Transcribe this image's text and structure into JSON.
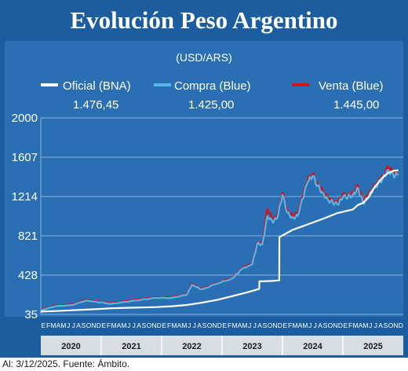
{
  "header": {
    "title": "Evolución Peso Argentino",
    "unit": "(USD/ARS)"
  },
  "source_note": "Al: 3/12/2025. Fuente: Ámbito.",
  "colors": {
    "background": "#1b5d9e",
    "panel": "#2a6fb3",
    "oficial": "#ffffff",
    "compra": "#55b6e8",
    "venta": "#d2141e",
    "grid": "#8ab4dc",
    "year_band": "#d8dde3"
  },
  "chart_data": {
    "type": "line",
    "title": "Evolución Peso Argentino",
    "subtitle": "(USD/ARS)",
    "ylim": [
      35,
      2000
    ],
    "yticks": [
      35,
      428,
      821,
      1214,
      1607,
      2000
    ],
    "ytick_labels": [
      "35",
      "428",
      "821",
      "1214",
      "1607",
      "2000"
    ],
    "grid": true,
    "legend_position": "top",
    "x_start": "2020-01",
    "x_end": "2025-12",
    "years": [
      "2020",
      "2021",
      "2022",
      "2023",
      "2024",
      "2025"
    ],
    "month_letters": [
      "E",
      "F",
      "M",
      "A",
      "M",
      "J",
      "J",
      "A",
      "S",
      "O",
      "N",
      "D"
    ],
    "series": [
      {
        "name": "Oficial (BNA)",
        "latest_value": "1.476,45",
        "points": [
          [
            "2020-01",
            63
          ],
          [
            "2020-04",
            69
          ],
          [
            "2020-07",
            76
          ],
          [
            "2020-10",
            83
          ],
          [
            "2020-12",
            88
          ],
          [
            "2021-03",
            96
          ],
          [
            "2021-06",
            101
          ],
          [
            "2021-09",
            104
          ],
          [
            "2021-12",
            108
          ],
          [
            "2022-03",
            117
          ],
          [
            "2022-06",
            129
          ],
          [
            "2022-09",
            152
          ],
          [
            "2022-12",
            180
          ],
          [
            "2023-03",
            217
          ],
          [
            "2023-06",
            256
          ],
          [
            "2023-08-13",
            290
          ],
          [
            "2023-08-14",
            365
          ],
          [
            "2023-11",
            370
          ],
          [
            "2023-12-12",
            375
          ],
          [
            "2023-12-13",
            808
          ],
          [
            "2024-03",
            880
          ],
          [
            "2024-06",
            935
          ],
          [
            "2024-09",
            990
          ],
          [
            "2024-12",
            1050
          ],
          [
            "2025-03",
            1085
          ],
          [
            "2025-04",
            1130
          ],
          [
            "2025-05",
            1150
          ],
          [
            "2025-06",
            1200
          ],
          [
            "2025-07",
            1285
          ],
          [
            "2025-08",
            1350
          ],
          [
            "2025-09",
            1410
          ],
          [
            "2025-10",
            1450
          ],
          [
            "2025-11",
            1470
          ],
          [
            "2025-12",
            1476
          ]
        ]
      },
      {
        "name": "Compra (Blue)",
        "latest_value": "1.425,00",
        "points": [
          [
            "2020-01",
            77
          ],
          [
            "2020-04",
            117
          ],
          [
            "2020-07",
            127
          ],
          [
            "2020-10",
            173
          ],
          [
            "2020-12",
            160
          ],
          [
            "2021-03",
            141
          ],
          [
            "2021-06",
            161
          ],
          [
            "2021-09",
            182
          ],
          [
            "2021-12",
            200
          ],
          [
            "2022-03",
            200
          ],
          [
            "2022-06",
            231
          ],
          [
            "2022-07",
            330
          ],
          [
            "2022-09",
            285
          ],
          [
            "2022-12",
            341
          ],
          [
            "2023-03",
            395
          ],
          [
            "2023-05",
            490
          ],
          [
            "2023-07",
            535
          ],
          [
            "2023-08",
            745
          ],
          [
            "2023-09",
            735
          ],
          [
            "2023-10",
            1020
          ],
          [
            "2023-11",
            960
          ],
          [
            "2023-12",
            1000
          ],
          [
            "2024-01",
            1230
          ],
          [
            "2024-02",
            1050
          ],
          [
            "2024-03",
            1000
          ],
          [
            "2024-04",
            1020
          ],
          [
            "2024-05",
            1190
          ],
          [
            "2024-06",
            1360
          ],
          [
            "2024-07",
            1420
          ],
          [
            "2024-08",
            1320
          ],
          [
            "2024-09",
            1250
          ],
          [
            "2024-10",
            1180
          ],
          [
            "2024-12",
            1130
          ],
          [
            "2025-01",
            1210
          ],
          [
            "2025-02",
            1210
          ],
          [
            "2025-03",
            1230
          ],
          [
            "2025-04",
            1300
          ],
          [
            "2025-05",
            1150
          ],
          [
            "2025-06",
            1200
          ],
          [
            "2025-07",
            1280
          ],
          [
            "2025-08",
            1340
          ],
          [
            "2025-09",
            1400
          ],
          [
            "2025-10",
            1480
          ],
          [
            "2025-11",
            1430
          ],
          [
            "2025-12",
            1425
          ]
        ]
      },
      {
        "name": "Venta (Blue)",
        "latest_value": "1.445,00",
        "points": [
          [
            "2020-01",
            79
          ],
          [
            "2020-04",
            122
          ],
          [
            "2020-07",
            132
          ],
          [
            "2020-10",
            178
          ],
          [
            "2020-12",
            166
          ],
          [
            "2021-03",
            145
          ],
          [
            "2021-06",
            167
          ],
          [
            "2021-09",
            187
          ],
          [
            "2021-12",
            208
          ],
          [
            "2022-03",
            205
          ],
          [
            "2022-06",
            236
          ],
          [
            "2022-07",
            338
          ],
          [
            "2022-09",
            290
          ],
          [
            "2022-12",
            346
          ],
          [
            "2023-03",
            400
          ],
          [
            "2023-05",
            495
          ],
          [
            "2023-07",
            545
          ],
          [
            "2023-08",
            755
          ],
          [
            "2023-09",
            745
          ],
          [
            "2023-10",
            1090
          ],
          [
            "2023-11",
            980
          ],
          [
            "2023-12",
            1020
          ],
          [
            "2024-01",
            1250
          ],
          [
            "2024-02",
            1070
          ],
          [
            "2024-03",
            1020
          ],
          [
            "2024-04",
            1040
          ],
          [
            "2024-05",
            1210
          ],
          [
            "2024-06",
            1380
          ],
          [
            "2024-07",
            1440
          ],
          [
            "2024-08",
            1340
          ],
          [
            "2024-09",
            1270
          ],
          [
            "2024-10",
            1200
          ],
          [
            "2024-12",
            1150
          ],
          [
            "2025-01",
            1230
          ],
          [
            "2025-02",
            1230
          ],
          [
            "2025-03",
            1250
          ],
          [
            "2025-04",
            1320
          ],
          [
            "2025-05",
            1170
          ],
          [
            "2025-06",
            1220
          ],
          [
            "2025-07",
            1300
          ],
          [
            "2025-08",
            1360
          ],
          [
            "2025-09",
            1420
          ],
          [
            "2025-10",
            1510
          ],
          [
            "2025-11",
            1450
          ],
          [
            "2025-12",
            1445
          ]
        ]
      }
    ]
  }
}
